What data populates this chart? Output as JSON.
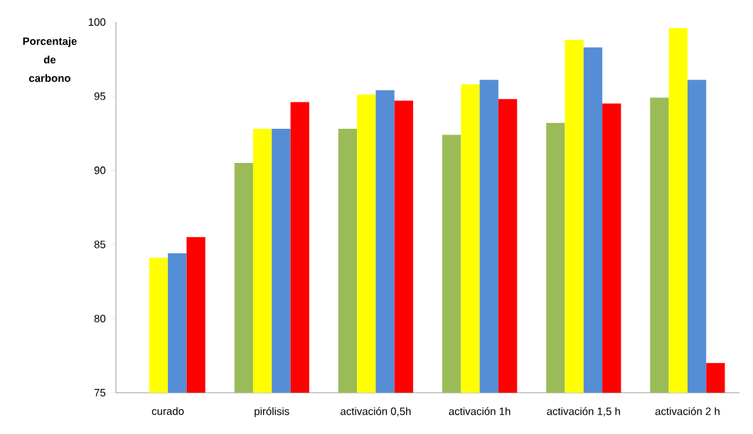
{
  "chart_data": {
    "type": "bar",
    "ylabel": "Porcentaje de carbono",
    "categories": [
      "curado",
      "pirólisis",
      "activación 0,5h",
      "activación 1h",
      "activación 1,5 h",
      "activación 2 h"
    ],
    "series": [
      {
        "color": "#9bbb59",
        "values": [
          null,
          90.5,
          92.8,
          92.4,
          93.2,
          94.9
        ]
      },
      {
        "color": "#ffff00",
        "values": [
          84.1,
          92.8,
          95.1,
          95.8,
          98.8,
          99.6
        ]
      },
      {
        "color": "#558ed5",
        "values": [
          84.4,
          92.8,
          95.4,
          96.1,
          98.3,
          96.1
        ]
      },
      {
        "color": "#ff0000",
        "values": [
          85.5,
          94.6,
          94.7,
          94.8,
          94.5,
          77.0
        ]
      }
    ],
    "ylim": [
      75,
      100
    ],
    "yticks": [
      75,
      80,
      85,
      90,
      95,
      100
    ]
  }
}
